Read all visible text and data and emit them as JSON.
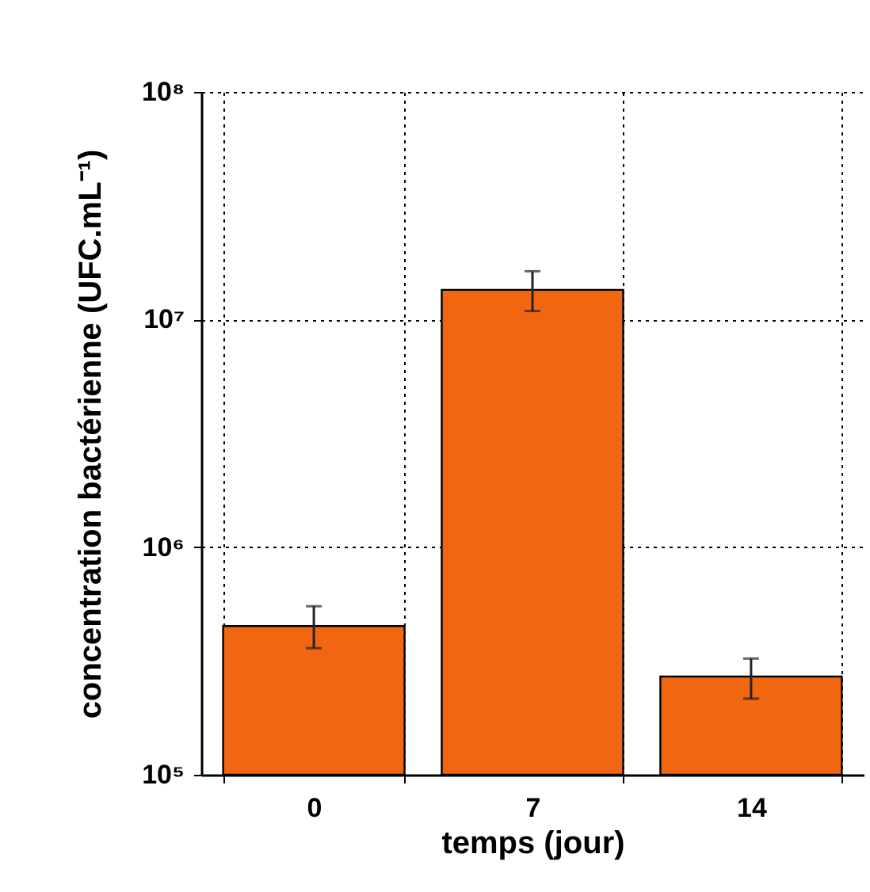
{
  "chart_data": {
    "type": "bar",
    "xlabel": "temps (jour)",
    "ylabel": "concentration bactérienne (UFC.mL⁻¹)",
    "categories": [
      "0",
      "7",
      "14"
    ],
    "values": [
      450000,
      13500000,
      270000
    ],
    "errors": [
      [
        360000,
        550000
      ],
      [
        10900000,
        16300000
      ],
      [
        216000,
        324000
      ]
    ],
    "color": "#f06611",
    "log": true,
    "ylim": [
      100000,
      100000000
    ],
    "yticks": [
      {
        "value": 100000,
        "label": "10⁵"
      },
      {
        "value": 1000000,
        "label": "10⁶"
      },
      {
        "value": 10000000,
        "label": "10⁷"
      },
      {
        "value": 100000000,
        "label": "10⁸"
      }
    ],
    "grid": true
  }
}
